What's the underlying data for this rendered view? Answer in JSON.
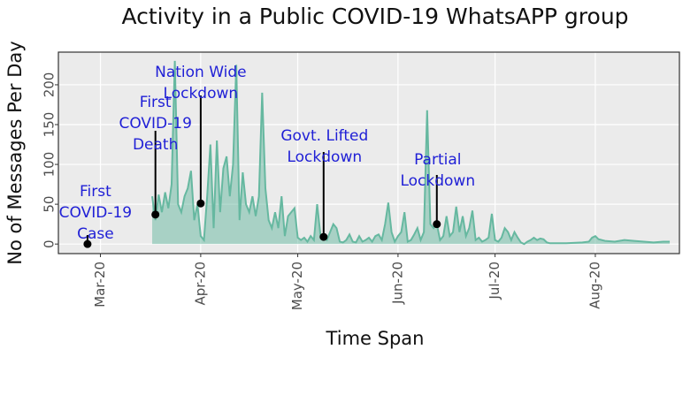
{
  "chart_data": {
    "type": "area",
    "title": "Activity in a Public COVID-19 WhatsAPP group",
    "x_label": "Time Span",
    "y_label": "No of Messages Per Day",
    "color": "#66b8a0",
    "grid": true,
    "xlim": [
      48,
      240
    ],
    "ylim": [
      -12,
      241
    ],
    "xticks": [
      {
        "value": 61,
        "label": "Mar-20"
      },
      {
        "value": 92,
        "label": "Apr-20"
      },
      {
        "value": 122,
        "label": "May-20"
      },
      {
        "value": 153,
        "label": "Jun-20"
      },
      {
        "value": 183,
        "label": "Jul-20"
      },
      {
        "value": 214,
        "label": "Aug-20"
      }
    ],
    "yticks": [
      0,
      50,
      100,
      150,
      200
    ],
    "x": [
      77,
      78,
      79,
      80,
      81,
      82,
      83,
      84,
      85,
      86,
      87,
      88,
      89,
      90,
      91,
      92,
      93,
      94,
      95,
      96,
      97,
      98,
      99,
      100,
      101,
      102,
      103,
      104,
      105,
      106,
      107,
      108,
      109,
      110,
      111,
      112,
      113,
      114,
      115,
      116,
      117,
      118,
      119,
      120,
      121,
      122,
      123,
      124,
      125,
      126,
      127,
      128,
      129,
      130,
      131,
      132,
      133,
      134,
      135,
      136,
      137,
      138,
      139,
      140,
      141,
      142,
      143,
      144,
      145,
      146,
      147,
      148,
      149,
      150,
      151,
      152,
      153,
      154,
      155,
      156,
      157,
      158,
      159,
      160,
      161,
      162,
      163,
      164,
      165,
      166,
      167,
      168,
      169,
      170,
      171,
      172,
      173,
      174,
      175,
      176,
      177,
      178,
      179,
      180,
      181,
      182,
      183,
      184,
      185,
      186,
      187,
      188,
      189,
      190,
      191,
      192,
      193,
      194,
      195,
      196,
      197,
      198,
      199,
      200,
      205,
      210,
      212,
      213,
      214,
      215,
      217,
      220,
      223,
      226,
      229,
      232,
      235,
      237
    ],
    "values": [
      60,
      30,
      62,
      40,
      65,
      45,
      75,
      230,
      50,
      40,
      60,
      70,
      92,
      30,
      50,
      10,
      5,
      60,
      125,
      20,
      130,
      40,
      95,
      110,
      60,
      100,
      225,
      30,
      90,
      50,
      40,
      60,
      35,
      60,
      190,
      70,
      30,
      20,
      40,
      20,
      60,
      10,
      35,
      40,
      45,
      8,
      5,
      8,
      3,
      10,
      5,
      50,
      12,
      8,
      5,
      15,
      25,
      20,
      3,
      2,
      5,
      12,
      3,
      2,
      10,
      3,
      5,
      8,
      3,
      10,
      12,
      5,
      25,
      52,
      15,
      3,
      10,
      15,
      40,
      3,
      5,
      12,
      20,
      5,
      15,
      168,
      25,
      20,
      25,
      5,
      10,
      35,
      10,
      15,
      47,
      15,
      35,
      10,
      20,
      42,
      5,
      8,
      3,
      5,
      8,
      38,
      5,
      3,
      8,
      20,
      15,
      5,
      15,
      8,
      2,
      0,
      3,
      5,
      8,
      5,
      7,
      6,
      2,
      1,
      1,
      2,
      3,
      8,
      10,
      6,
      4,
      3,
      5,
      4,
      3,
      2,
      3,
      3
    ],
    "annotations": [
      {
        "lines": [
          "First",
          "COVID-19",
          "Case"
        ],
        "x": 57,
        "y": 0
      },
      {
        "lines": [
          "First",
          "COVID-19",
          "Death"
        ],
        "x": 78,
        "y": 37
      },
      {
        "lines": [
          "Nation Wide",
          "Lockdown"
        ],
        "x": 92,
        "y": 51
      },
      {
        "lines": [
          "Govt. Lifted",
          "Lockdown"
        ],
        "x": 130,
        "y": 9
      },
      {
        "lines": [
          "Partial",
          "Lockdown"
        ],
        "x": 165,
        "y": 25
      }
    ]
  }
}
